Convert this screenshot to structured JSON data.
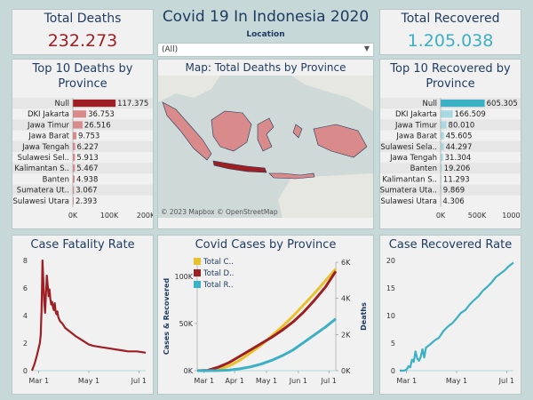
{
  "header": {
    "title": "Covid 19 In Indonesia 2020",
    "location_label": "Location",
    "location_value": "(All)"
  },
  "kpi": {
    "total_deaths_label": "Total Deaths",
    "total_deaths_value": "232.273",
    "total_recovered_label": "Total Recovered",
    "total_recovered_value": "1.205.038"
  },
  "map": {
    "title": "Map: Total Deaths by Province",
    "attribution": "© 2023 Mapbox © OpenStreetMap"
  },
  "colors": {
    "deaths": "#9e1f23",
    "deaths_light": "#d98a8a",
    "recovered": "#3cb0c4",
    "recovered_light": "#a8d8e0",
    "total_cases": "#e8c22c",
    "title": "#1d3a5f"
  },
  "chart_data": [
    {
      "id": "top_deaths",
      "type": "bar",
      "title": "Top 10 Deaths by Province",
      "categories": [
        "Null",
        "DKI Jakarta",
        "Jawa Timur",
        "Jawa Barat",
        "Jawa Tengah",
        "Sulawesi Sel..",
        "Kalimantan S..",
        "Banten",
        "Sumatera Ut..",
        "Sulawesi Utara"
      ],
      "values": [
        117375,
        36753,
        26516,
        9753,
        6227,
        5913,
        5467,
        4938,
        3067,
        2393
      ],
      "labels": [
        "117.375",
        "36.753",
        "26.516",
        "9.753",
        "6.227",
        "5.913",
        "5.467",
        "4.938",
        "3.067",
        "2.393"
      ],
      "xlim": [
        0,
        200000
      ],
      "xticks": [
        "0K",
        "100K",
        "200K"
      ]
    },
    {
      "id": "top_recovered",
      "type": "bar",
      "title": "Top 10 Recovered by Province",
      "categories": [
        "Null",
        "DKI Jakarta",
        "Jawa Timur",
        "Jawa Barat",
        "Sulawesi Sela..",
        "Jawa Tengah",
        "Banten",
        "Kalimantan S..",
        "Sumatera Uta..",
        "Sulawesi Utara"
      ],
      "values": [
        605305,
        166509,
        80010,
        45605,
        44297,
        31304,
        19206,
        11293,
        9869,
        4306
      ],
      "labels": [
        "605.305",
        "166.509",
        "80.010",
        "45.605",
        "44.297",
        "31.304",
        "19.206",
        "11.293",
        "9.869",
        "4.306"
      ],
      "xlim": [
        0,
        1000000
      ],
      "xticks": [
        "0K",
        "500K",
        "1000K"
      ]
    },
    {
      "id": "cfr",
      "type": "line",
      "title": "Case Fatality Rate",
      "x": [
        0,
        3,
        6,
        9,
        10,
        11,
        12,
        13,
        14,
        15,
        16,
        17,
        18,
        19,
        20,
        21,
        22,
        23,
        24,
        25,
        26,
        27,
        28,
        29,
        30,
        32,
        35,
        38,
        42,
        46,
        50,
        55,
        60,
        65,
        70,
        80,
        90,
        100,
        110,
        120,
        130
      ],
      "y": [
        0,
        0.5,
        1.2,
        2.0,
        2.6,
        4.5,
        8.0,
        6.5,
        5.0,
        4.2,
        5.6,
        6.9,
        6.2,
        5.4,
        5.9,
        5.2,
        4.8,
        5.0,
        4.6,
        4.4,
        4.9,
        4.3,
        4.1,
        4.3,
        3.9,
        3.6,
        3.4,
        3.1,
        2.9,
        2.7,
        2.5,
        2.3,
        2.1,
        1.9,
        1.8,
        1.7,
        1.6,
        1.5,
        1.4,
        1.4,
        1.3
      ],
      "ylim": [
        0,
        8
      ],
      "yticks": [
        "0",
        "2",
        "4",
        "6",
        "8"
      ],
      "xticks": [
        "Mar 1",
        "May 1",
        "Jul 1"
      ]
    },
    {
      "id": "cases",
      "type": "line",
      "title": "Covid Cases by Province",
      "ylabel": "Cases & Recovered",
      "y2label": "Deaths",
      "yticks": [
        "0K",
        "50K",
        "100K"
      ],
      "y2ticks": [
        "0K",
        "2K",
        "4K",
        "6K"
      ],
      "xticks": [
        "Mar 1",
        "Apr 1",
        "May 1",
        "Jun 1",
        "Jul 1"
      ],
      "legend": [
        "Total C..",
        "Total D..",
        "Total R.."
      ],
      "x": [
        0,
        10,
        20,
        30,
        40,
        50,
        60,
        70,
        80,
        90,
        100,
        110,
        120,
        130
      ],
      "series": [
        {
          "name": "Total C..",
          "values": [
            0,
            200,
            1500,
            5000,
            11000,
            19000,
            27000,
            37000,
            47000,
            58000,
            70000,
            82000,
            95000,
            108000
          ]
        },
        {
          "name": "Total D..",
          "values": [
            0,
            20,
            200,
            450,
            800,
            1150,
            1500,
            1850,
            2250,
            2700,
            3250,
            3900,
            4600,
            5500
          ]
        },
        {
          "name": "Total R..",
          "values": [
            0,
            0,
            100,
            600,
            2000,
            4000,
            7000,
            11000,
            16000,
            22000,
            30000,
            38000,
            46000,
            55000
          ]
        }
      ],
      "ylim": [
        0,
        115000
      ],
      "y2lim": [
        0,
        6000
      ]
    },
    {
      "id": "crr",
      "type": "line",
      "title": "Case Recovered Rate",
      "x": [
        0,
        5,
        8,
        10,
        12,
        14,
        16,
        18,
        20,
        22,
        24,
        26,
        28,
        30,
        35,
        40,
        45,
        50,
        55,
        60,
        65,
        70,
        75,
        80,
        85,
        90,
        95,
        100,
        105,
        110,
        115,
        120,
        125,
        130
      ],
      "y": [
        0,
        0,
        0.2,
        0.8,
        0.6,
        2.0,
        1.6,
        3.5,
        2.2,
        1.8,
        2.5,
        3.9,
        2.4,
        4.2,
        4.8,
        5.5,
        6.0,
        7.2,
        8.0,
        8.6,
        9.5,
        10.5,
        11.0,
        12.0,
        12.8,
        13.5,
        14.5,
        15.2,
        16.0,
        17.0,
        17.6,
        18.2,
        19.0,
        19.6
      ],
      "ylim": [
        0,
        20
      ],
      "yticks": [
        "0",
        "5",
        "10",
        "15",
        "20"
      ],
      "xticks": [
        "Mar 1",
        "May 1",
        "Jul 1"
      ]
    }
  ]
}
